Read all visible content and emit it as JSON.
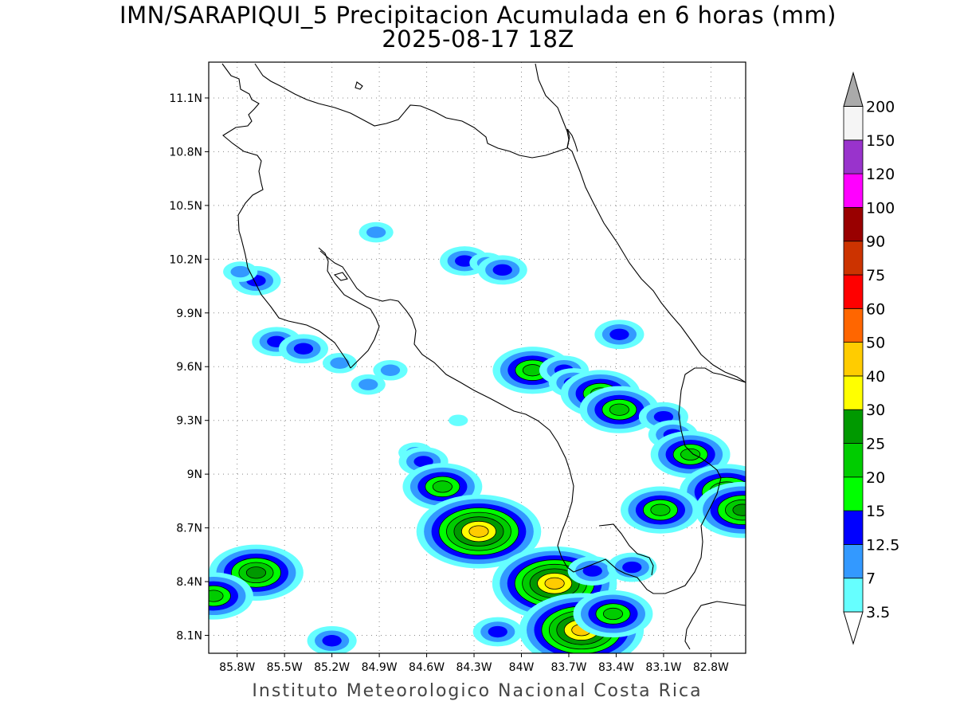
{
  "title": "IMN/SARAPIQUI_5 Precipitacion Acumulada en 6 horas (mm)",
  "subtitle": "2025-08-17 18Z",
  "footer": "Instituto Meteorologico Nacional Costa Rica",
  "map": {
    "lon_range": [
      -85.98,
      -82.58
    ],
    "lat_range": [
      8.0,
      11.3
    ],
    "lat_ticks": [
      {
        "value": 11.1,
        "label": "11.1N"
      },
      {
        "value": 10.8,
        "label": "10.8N"
      },
      {
        "value": 10.5,
        "label": "10.5N"
      },
      {
        "value": 10.2,
        "label": "10.2N"
      },
      {
        "value": 9.9,
        "label": "9.9N"
      },
      {
        "value": 9.6,
        "label": "9.6N"
      },
      {
        "value": 9.3,
        "label": "9.3N"
      },
      {
        "value": 9.0,
        "label": "9N"
      },
      {
        "value": 8.7,
        "label": "8.7N"
      },
      {
        "value": 8.4,
        "label": "8.4N"
      },
      {
        "value": 8.1,
        "label": "8.1N"
      }
    ],
    "lon_ticks": [
      {
        "value": -85.8,
        "label": "85.8W"
      },
      {
        "value": -85.5,
        "label": "85.5W"
      },
      {
        "value": -85.2,
        "label": "85.2W"
      },
      {
        "value": -84.9,
        "label": "84.9W"
      },
      {
        "value": -84.6,
        "label": "84.6W"
      },
      {
        "value": -84.3,
        "label": "84.3W"
      },
      {
        "value": -84.0,
        "label": "84W"
      },
      {
        "value": -83.7,
        "label": "83.7W"
      },
      {
        "value": -83.4,
        "label": "83.4W"
      },
      {
        "value": -83.1,
        "label": "83.1W"
      },
      {
        "value": -82.8,
        "label": "82.8W"
      }
    ],
    "grid": "dotted",
    "precip_cells": [
      {
        "lon": -85.68,
        "lat": 10.08,
        "level": 12.5
      },
      {
        "lon": -85.78,
        "lat": 10.13,
        "level": 7
      },
      {
        "lon": -84.92,
        "lat": 10.35,
        "level": 7
      },
      {
        "lon": -84.36,
        "lat": 10.19,
        "level": 12.5
      },
      {
        "lon": -84.22,
        "lat": 10.18,
        "level": 7
      },
      {
        "lon": -84.12,
        "lat": 10.14,
        "level": 12.5
      },
      {
        "lon": -85.55,
        "lat": 9.74,
        "level": 12.5
      },
      {
        "lon": -85.38,
        "lat": 9.7,
        "level": 12.5
      },
      {
        "lon": -85.15,
        "lat": 9.62,
        "level": 7
      },
      {
        "lon": -84.97,
        "lat": 9.5,
        "level": 7
      },
      {
        "lon": -84.83,
        "lat": 9.58,
        "level": 7
      },
      {
        "lon": -84.4,
        "lat": 9.3,
        "level": 3.5
      },
      {
        "lon": -84.67,
        "lat": 9.12,
        "level": 7
      },
      {
        "lon": -84.62,
        "lat": 9.07,
        "level": 12.5
      },
      {
        "lon": -84.5,
        "lat": 8.93,
        "level": 20
      },
      {
        "lon": -84.3,
        "lat": 8.72,
        "level": 25
      },
      {
        "lon": -84.27,
        "lat": 8.68,
        "level": 40
      },
      {
        "lon": -83.93,
        "lat": 9.58,
        "level": 20
      },
      {
        "lon": -83.73,
        "lat": 9.58,
        "level": 12.5
      },
      {
        "lon": -83.67,
        "lat": 9.51,
        "level": 12.5
      },
      {
        "lon": -83.5,
        "lat": 9.45,
        "level": 20
      },
      {
        "lon": -83.38,
        "lat": 9.36,
        "level": 20
      },
      {
        "lon": -83.38,
        "lat": 9.78,
        "level": 12.5
      },
      {
        "lon": -83.1,
        "lat": 9.32,
        "level": 12.5
      },
      {
        "lon": -83.04,
        "lat": 9.22,
        "level": 12.5
      },
      {
        "lon": -82.93,
        "lat": 9.11,
        "level": 20
      },
      {
        "lon": -82.7,
        "lat": 8.9,
        "level": 25
      },
      {
        "lon": -82.6,
        "lat": 8.8,
        "level": 25
      },
      {
        "lon": -83.12,
        "lat": 8.8,
        "level": 20
      },
      {
        "lon": -83.8,
        "lat": 8.39,
        "level": 25
      },
      {
        "lon": -83.79,
        "lat": 8.39,
        "level": 40
      },
      {
        "lon": -83.6,
        "lat": 8.13,
        "level": 25
      },
      {
        "lon": -83.62,
        "lat": 8.13,
        "level": 40
      },
      {
        "lon": -83.42,
        "lat": 8.22,
        "level": 20
      },
      {
        "lon": -85.68,
        "lat": 8.45,
        "level": 25
      },
      {
        "lon": -85.95,
        "lat": 8.32,
        "level": 20
      },
      {
        "lon": -85.2,
        "lat": 8.07,
        "level": 12.5
      },
      {
        "lon": -84.15,
        "lat": 8.12,
        "level": 12.5
      },
      {
        "lon": -83.55,
        "lat": 8.46,
        "level": 12.5
      },
      {
        "lon": -83.3,
        "lat": 8.48,
        "level": 12.5
      }
    ]
  },
  "colorbar": {
    "levels": [
      {
        "label": "3.5",
        "color": "#66ffff"
      },
      {
        "label": "7",
        "color": "#3399ff"
      },
      {
        "label": "12.5",
        "color": "#0000ff"
      },
      {
        "label": "15",
        "color": "#00ff00"
      },
      {
        "label": "20",
        "color": "#00cc00"
      },
      {
        "label": "25",
        "color": "#009900"
      },
      {
        "label": "30",
        "color": "#ffff00"
      },
      {
        "label": "40",
        "color": "#ffcc00"
      },
      {
        "label": "50",
        "color": "#ff6600"
      },
      {
        "label": "60",
        "color": "#ff0000"
      },
      {
        "label": "75",
        "color": "#cc3300"
      },
      {
        "label": "90",
        "color": "#990000"
      },
      {
        "label": "100",
        "color": "#ff00ff"
      },
      {
        "label": "120",
        "color": "#9933cc"
      },
      {
        "label": "150",
        "color": "#f5f5f5"
      },
      {
        "label": "200",
        "color": "#aaaaaa"
      }
    ]
  }
}
